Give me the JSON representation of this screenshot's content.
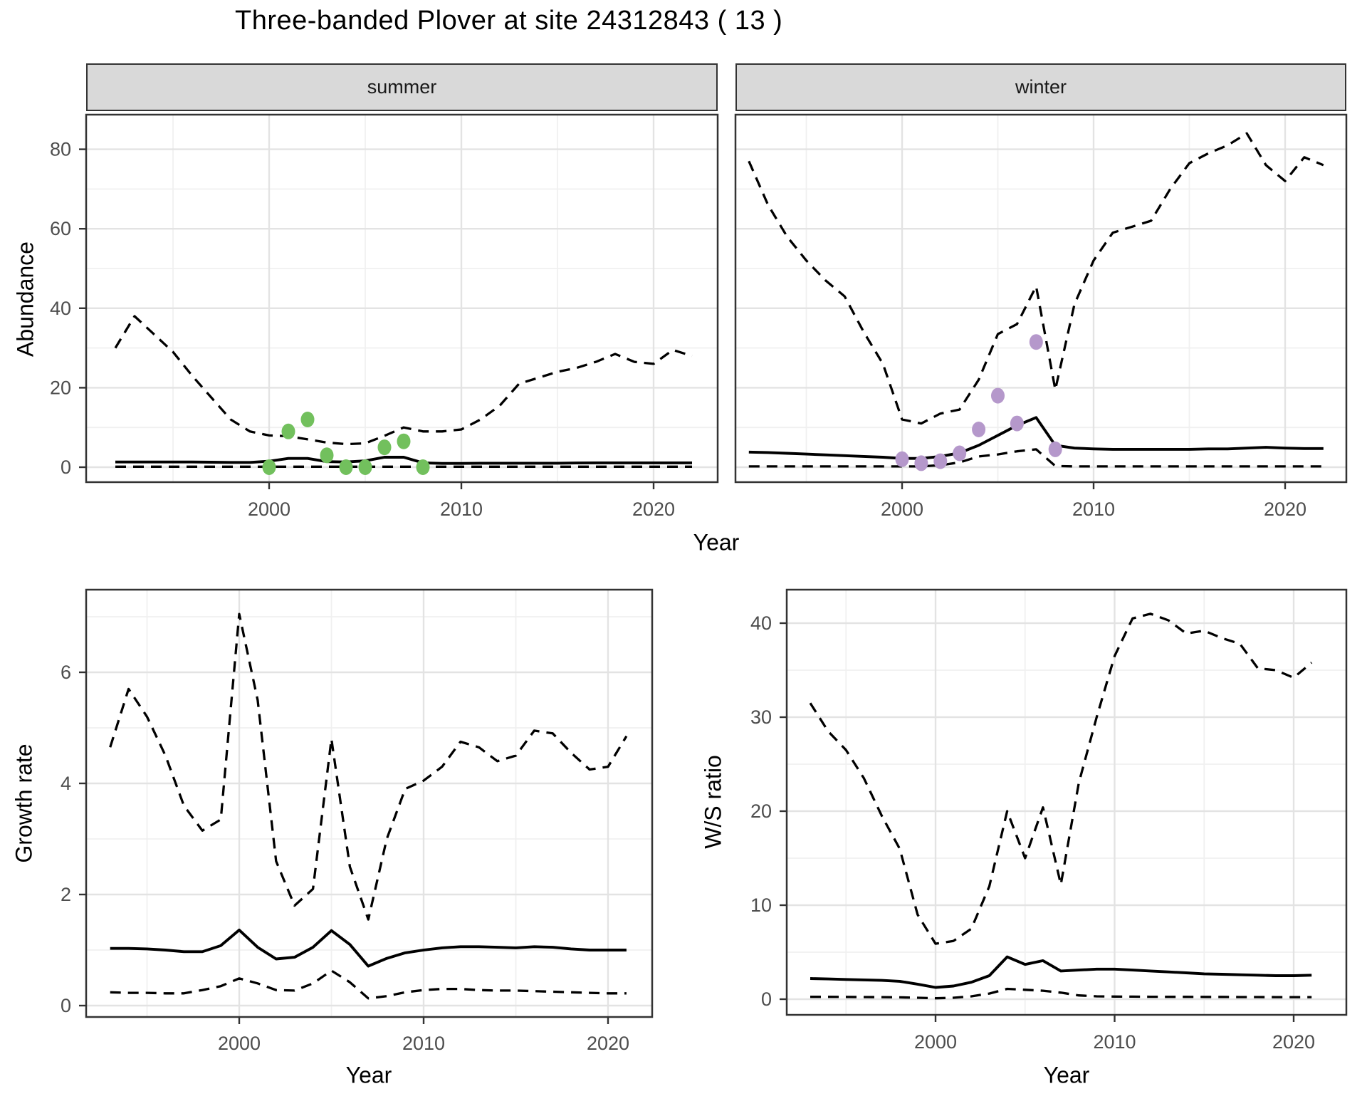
{
  "title": "Three-banded Plover at site 24312843 ( 13 )",
  "labels": {
    "y_top": "Abundance",
    "y_growth": "Growth rate",
    "y_ws": "W/S ratio",
    "x_top": "Year",
    "x_growth": "Year",
    "x_ws": "Year"
  },
  "facets": {
    "summer": "summer",
    "winter": "winter"
  },
  "colors": {
    "summer_points": "#72c05d",
    "winter_points": "#b598cb",
    "line": "#000000",
    "strip_bg": "#d9d9d9",
    "panel_border": "#333333",
    "grid_major": "#e3e3e3",
    "grid_minor": "#f0f0f0",
    "axis_text": "#4d4d4d"
  },
  "chart_data": [
    {
      "id": "abundance_summer",
      "type": "line",
      "facet": "summer",
      "xlabel": "Year",
      "ylabel": "Abundance",
      "x_ticks": [
        2000,
        2010,
        2020
      ],
      "x_minor": [
        1995,
        2005,
        2015
      ],
      "y_ticks": [
        0,
        20,
        40,
        60,
        80
      ],
      "y_minor": [
        10,
        30,
        50,
        70
      ],
      "xlim": [
        1990.5,
        2023.4
      ],
      "ylim": [
        -4,
        89
      ],
      "grid": true,
      "legend": "none",
      "years": [
        1992,
        1993,
        1994,
        1995,
        1996,
        1997,
        1998,
        1999,
        2000,
        2001,
        2002,
        2003,
        2004,
        2005,
        2006,
        2007,
        2008,
        2009,
        2010,
        2011,
        2012,
        2013,
        2014,
        2015,
        2016,
        2017,
        2018,
        2019,
        2020,
        2021,
        2022
      ],
      "series": [
        {
          "name": "upper_95ci",
          "style": "dashed",
          "values": [
            30,
            38,
            33.5,
            29,
            23,
            17.5,
            12,
            9,
            8,
            7.8,
            7,
            6.2,
            5.8,
            6,
            7.9,
            10,
            9,
            9,
            9.5,
            12,
            15.5,
            21,
            22.5,
            24,
            25,
            26.5,
            28.5,
            26.5,
            26,
            29.5,
            28
          ]
        },
        {
          "name": "mean",
          "style": "solid",
          "values": [
            1.3,
            1.3,
            1.3,
            1.3,
            1.3,
            1.25,
            1.2,
            1.2,
            1.5,
            2.2,
            2.2,
            1.4,
            1.3,
            1.6,
            2.5,
            2.5,
            1.1,
            0.95,
            0.95,
            1.0,
            1.0,
            1.0,
            1.0,
            1.0,
            1.05,
            1.1,
            1.1,
            1.1,
            1.1,
            1.1,
            1.1
          ]
        },
        {
          "name": "lower_95ci",
          "style": "dashed",
          "values": [
            0.12,
            0.12,
            0.12,
            0.12,
            0.12,
            0.12,
            0.12,
            0.12,
            0.12,
            0.12,
            0.12,
            0.12,
            0.12,
            0.12,
            0.12,
            0.12,
            0.12,
            0.12,
            0.12,
            0.12,
            0.12,
            0.12,
            0.12,
            0.12,
            0.12,
            0.12,
            0.12,
            0.12,
            0.12,
            0.12,
            0.12
          ]
        }
      ],
      "points": {
        "name": "observed_counts",
        "color_key": "summer_points",
        "years": [
          2000,
          2001,
          2002,
          2003,
          2004,
          2005,
          2006,
          2007,
          2008
        ],
        "values": [
          0,
          9,
          12,
          3,
          0,
          0,
          5,
          6.5,
          0
        ]
      }
    },
    {
      "id": "abundance_winter",
      "type": "line",
      "facet": "winter",
      "xlabel": "Year",
      "ylabel": "Abundance",
      "x_ticks": [
        2000,
        2010,
        2020
      ],
      "x_minor": [
        1995,
        2005,
        2015
      ],
      "y_ticks": [
        0,
        20,
        40,
        60,
        80
      ],
      "y_minor": [
        10,
        30,
        50,
        70
      ],
      "xlim": [
        1990.5,
        2023.4
      ],
      "ylim": [
        -4,
        89
      ],
      "grid": true,
      "legend": "none",
      "years": [
        1992,
        1993,
        1994,
        1995,
        1996,
        1997,
        1998,
        1999,
        2000,
        2001,
        2002,
        2003,
        2004,
        2005,
        2006,
        2007,
        2008,
        2009,
        2010,
        2011,
        2012,
        2013,
        2014,
        2015,
        2016,
        2017,
        2018,
        2019,
        2020,
        2021,
        2022
      ],
      "series": [
        {
          "name": "upper_95ci",
          "style": "dashed",
          "values": [
            77,
            66,
            58,
            52,
            47,
            43,
            34,
            26,
            12,
            11,
            13.5,
            14.5,
            22,
            33.5,
            36,
            45.5,
            19.5,
            41,
            52,
            59,
            60.5,
            62,
            70,
            76.5,
            79,
            81,
            84,
            76,
            72,
            78,
            76
          ]
        },
        {
          "name": "mean",
          "style": "solid",
          "values": [
            3.8,
            3.7,
            3.5,
            3.3,
            3.1,
            2.9,
            2.7,
            2.5,
            2.2,
            2.2,
            2.7,
            3.6,
            5.5,
            8.0,
            10.5,
            12.5,
            5.5,
            4.8,
            4.6,
            4.5,
            4.5,
            4.5,
            4.5,
            4.5,
            4.6,
            4.6,
            4.8,
            5.0,
            4.8,
            4.7,
            4.7
          ]
        },
        {
          "name": "lower_95ci",
          "style": "dashed",
          "values": [
            0.2,
            0.2,
            0.2,
            0.2,
            0.2,
            0.2,
            0.2,
            0.2,
            0.2,
            0.2,
            0.5,
            1.2,
            2.7,
            3.2,
            4.0,
            4.5,
            0.3,
            0.2,
            0.2,
            0.2,
            0.2,
            0.2,
            0.2,
            0.2,
            0.2,
            0.2,
            0.2,
            0.2,
            0.2,
            0.2,
            0.2
          ]
        }
      ],
      "points": {
        "name": "observed_counts",
        "color_key": "winter_points",
        "years": [
          2000,
          2001,
          2002,
          2003,
          2004,
          2005,
          2006,
          2007,
          2008
        ],
        "values": [
          2,
          1,
          1.5,
          3.5,
          9.5,
          18,
          11,
          31.5,
          4.5
        ]
      }
    },
    {
      "id": "growth_rate",
      "type": "line",
      "xlabel": "Year",
      "ylabel": "Growth rate",
      "x_ticks": [
        2000,
        2010,
        2020
      ],
      "x_minor": [
        1995,
        2005,
        2015
      ],
      "y_ticks": [
        0,
        2,
        4,
        6
      ],
      "y_minor": [
        1,
        3,
        5,
        7
      ],
      "xlim": [
        1991.6,
        2022.4
      ],
      "ylim": [
        -0.2,
        7.5
      ],
      "grid": true,
      "legend": "none",
      "years": [
        1993,
        1994,
        1995,
        1996,
        1997,
        1998,
        1999,
        2000,
        2001,
        2002,
        2003,
        2004,
        2005,
        2006,
        2007,
        2008,
        2009,
        2010,
        2011,
        2012,
        2013,
        2014,
        2015,
        2016,
        2017,
        2018,
        2019,
        2020,
        2021
      ],
      "series": [
        {
          "name": "upper_95ci",
          "style": "dashed",
          "values": [
            4.65,
            5.7,
            5.2,
            4.5,
            3.6,
            3.15,
            3.35,
            7.05,
            5.5,
            2.6,
            1.8,
            2.1,
            4.8,
            2.5,
            1.55,
            3.0,
            3.9,
            4.05,
            4.3,
            4.75,
            4.65,
            4.4,
            4.5,
            4.95,
            4.9,
            4.55,
            4.25,
            4.3,
            4.85
          ]
        },
        {
          "name": "mean",
          "style": "solid",
          "values": [
            1.03,
            1.03,
            1.02,
            1.0,
            0.97,
            0.97,
            1.08,
            1.36,
            1.05,
            0.84,
            0.87,
            1.05,
            1.35,
            1.1,
            0.71,
            0.85,
            0.95,
            1.0,
            1.04,
            1.06,
            1.06,
            1.05,
            1.04,
            1.06,
            1.05,
            1.02,
            1.0,
            1.0,
            1.0
          ]
        },
        {
          "name": "lower_95ci",
          "style": "dashed",
          "values": [
            0.24,
            0.23,
            0.23,
            0.22,
            0.22,
            0.28,
            0.35,
            0.49,
            0.4,
            0.28,
            0.27,
            0.4,
            0.63,
            0.42,
            0.13,
            0.17,
            0.24,
            0.28,
            0.3,
            0.3,
            0.28,
            0.27,
            0.27,
            0.26,
            0.25,
            0.24,
            0.23,
            0.22,
            0.22
          ]
        }
      ]
    },
    {
      "id": "ws_ratio",
      "type": "line",
      "xlabel": "Year",
      "ylabel": "W/S ratio",
      "x_ticks": [
        2000,
        2010,
        2020
      ],
      "x_minor": [
        1995,
        2005,
        2015
      ],
      "y_ticks": [
        0,
        10,
        20,
        30,
        40
      ],
      "y_minor": [
        5,
        15,
        25,
        35
      ],
      "xlim": [
        1991.6,
        2022.4
      ],
      "ylim": [
        -1.5,
        43
      ],
      "grid": true,
      "legend": "none",
      "years": [
        1993,
        1994,
        1995,
        1996,
        1997,
        1998,
        1999,
        2000,
        2001,
        2002,
        2003,
        2004,
        2005,
        2006,
        2007,
        2008,
        2009,
        2010,
        2011,
        2012,
        2013,
        2014,
        2015,
        2016,
        2017,
        2018,
        2019,
        2020,
        2021
      ],
      "series": [
        {
          "name": "upper_95ci",
          "style": "dashed",
          "values": [
            31.5,
            28.5,
            26.5,
            23.5,
            19.5,
            16,
            9,
            5.9,
            6.2,
            7.5,
            12,
            20,
            15,
            20.4,
            12.2,
            23,
            30,
            36.5,
            40.5,
            41,
            40.3,
            38.9,
            39.2,
            38.4,
            37.8,
            35.2,
            35,
            34.2,
            35.8
          ]
        },
        {
          "name": "mean",
          "style": "solid",
          "values": [
            2.2,
            2.15,
            2.1,
            2.05,
            2.0,
            1.9,
            1.6,
            1.25,
            1.4,
            1.8,
            2.5,
            4.5,
            3.7,
            4.1,
            3.0,
            3.1,
            3.2,
            3.2,
            3.1,
            3.0,
            2.9,
            2.8,
            2.7,
            2.65,
            2.6,
            2.55,
            2.5,
            2.5,
            2.55
          ]
        },
        {
          "name": "lower_95ci",
          "style": "dashed",
          "values": [
            0.25,
            0.25,
            0.24,
            0.23,
            0.22,
            0.2,
            0.15,
            0.1,
            0.15,
            0.3,
            0.6,
            1.1,
            1.0,
            0.9,
            0.7,
            0.4,
            0.3,
            0.28,
            0.27,
            0.26,
            0.25,
            0.25,
            0.24,
            0.24,
            0.23,
            0.23,
            0.22,
            0.22,
            0.22
          ]
        }
      ]
    }
  ]
}
